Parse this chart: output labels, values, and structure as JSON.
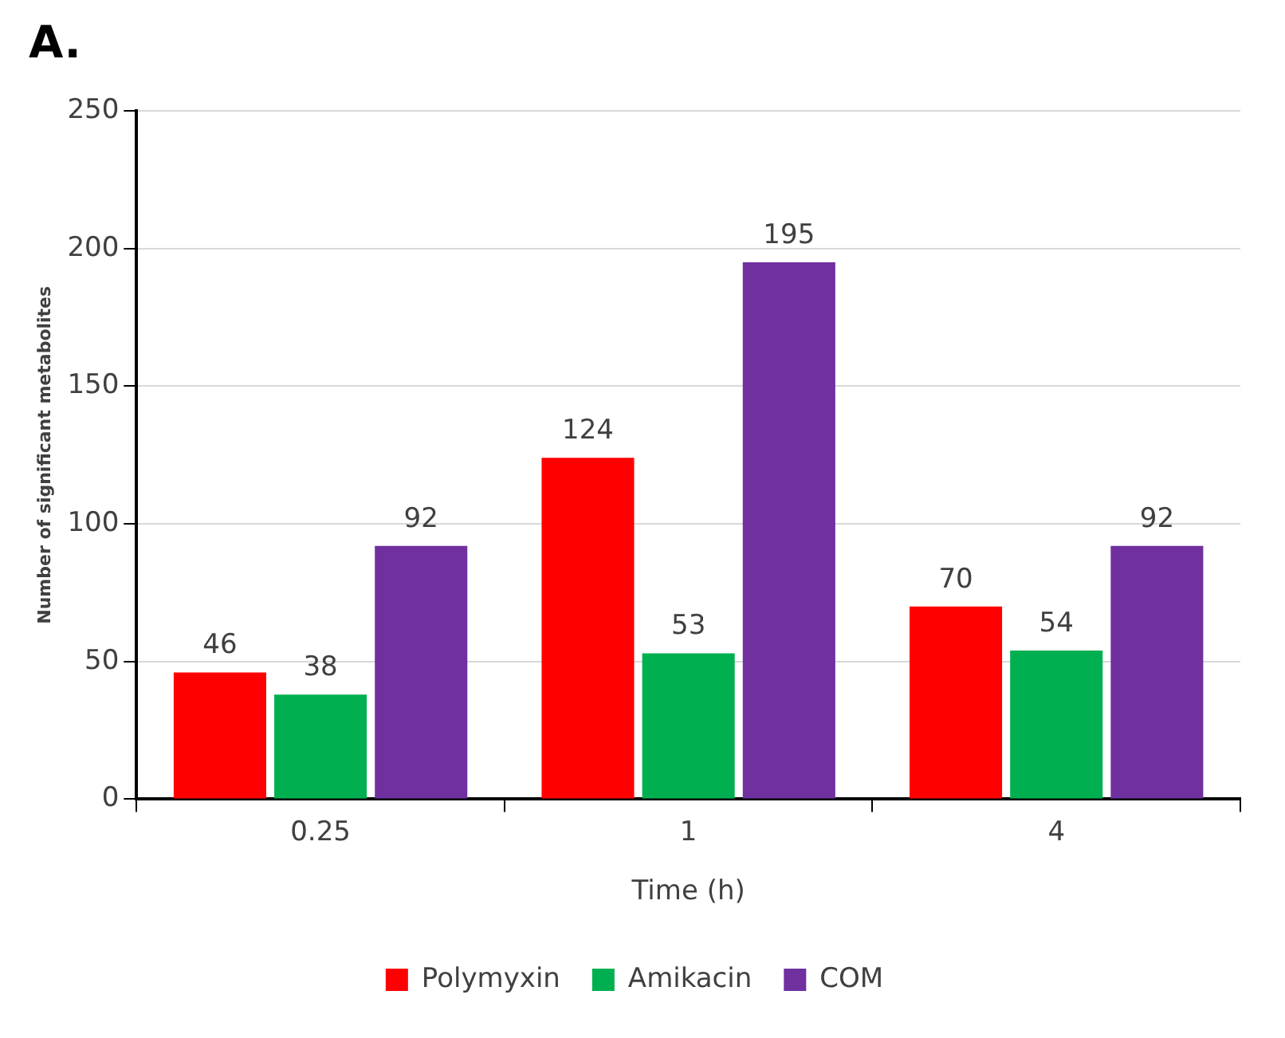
{
  "chart_data": {
    "type": "bar",
    "title": "A.",
    "xlabel": "Time (h)",
    "ylabel": "Number of significant metabolites",
    "categories": [
      "0.25",
      "1",
      "4"
    ],
    "series": [
      {
        "name": "Polymyxin",
        "color": "#ff0000",
        "values": [
          46,
          124,
          70
        ]
      },
      {
        "name": "Amikacin",
        "color": "#00b050",
        "values": [
          38,
          53,
          54
        ]
      },
      {
        "name": "COM",
        "color": "#7030a0",
        "values": [
          92,
          195,
          92
        ]
      }
    ],
    "ylim": [
      0,
      250
    ],
    "yticks": [
      0,
      50,
      100,
      150,
      200,
      250
    ],
    "grid": "y",
    "legend": "bottom",
    "data_labels": true
  }
}
